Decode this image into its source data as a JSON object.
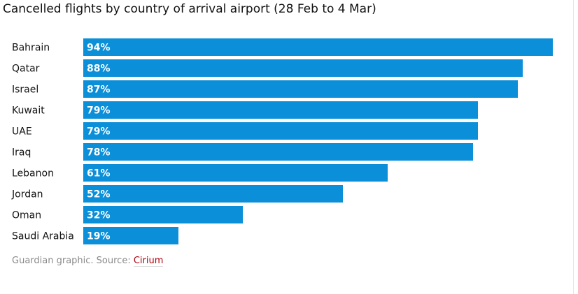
{
  "chart_data": {
    "type": "bar",
    "orientation": "horizontal",
    "title": "Cancelled flights by country of arrival airport (28 Feb to 4 Mar)",
    "categories": [
      "Bahrain",
      "Qatar",
      "Israel",
      "Kuwait",
      "UAE",
      "Iraq",
      "Lebanon",
      "Jordan",
      "Oman",
      "Saudi Arabia"
    ],
    "values": [
      94,
      88,
      87,
      79,
      79,
      78,
      61,
      52,
      32,
      19
    ],
    "value_labels": [
      "94%",
      "88%",
      "87%",
      "79%",
      "79%",
      "78%",
      "61%",
      "52%",
      "32%",
      "19%"
    ],
    "unit": "%",
    "xlim": [
      0,
      94
    ],
    "grid": false,
    "legend": "none",
    "bar_color": "#0a8fd8"
  },
  "footer": {
    "source_prefix": "Guardian graphic. Source: ",
    "source_name": "Cirium"
  }
}
